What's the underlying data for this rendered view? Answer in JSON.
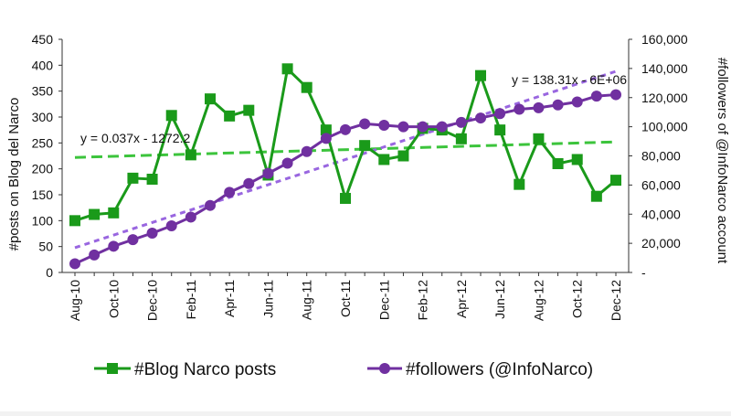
{
  "chart_data": {
    "type": "line",
    "x": [
      "Aug-10",
      "Sep-10",
      "Oct-10",
      "Nov-10",
      "Dec-10",
      "Jan-11",
      "Feb-11",
      "Mar-11",
      "Apr-11",
      "May-11",
      "Jun-11",
      "Jul-11",
      "Aug-11",
      "Sep-11",
      "Oct-11",
      "Nov-11",
      "Dec-11",
      "Jan-12",
      "Feb-12",
      "Mar-12",
      "Apr-12",
      "May-12",
      "Jun-12",
      "Jul-12",
      "Aug-12",
      "Sep-12",
      "Oct-12",
      "Nov-12",
      "Dec-12"
    ],
    "x_tick_labels": [
      "Aug-10",
      "Oct-10",
      "Dec-10",
      "Feb-11",
      "Apr-11",
      "Jun-11",
      "Aug-11",
      "Oct-11",
      "Dec-11",
      "Feb-12",
      "Apr-12",
      "Jun-12",
      "Aug-12",
      "Oct-12",
      "Dec-12"
    ],
    "series": [
      {
        "name": "#Blog Narco posts",
        "axis": "left",
        "color": "#1a9a1a",
        "marker": "square",
        "values": [
          100,
          112,
          115,
          182,
          180,
          303,
          227,
          335,
          302,
          313,
          188,
          393,
          357,
          275,
          143,
          245,
          218,
          225,
          278,
          275,
          258,
          380,
          275,
          170,
          258,
          210,
          218,
          147,
          178
        ]
      },
      {
        "name": "#followers (@InfoNarco)",
        "axis": "right",
        "color": "#7030a0",
        "marker": "circle",
        "values": [
          6000,
          12000,
          18000,
          22500,
          27000,
          32000,
          38000,
          46000,
          55000,
          61000,
          68000,
          75000,
          83000,
          92000,
          98000,
          102000,
          101000,
          100000,
          100000,
          100000,
          103000,
          106000,
          109000,
          112000,
          113000,
          115000,
          117000,
          121000,
          122000
        ]
      }
    ],
    "trendlines": [
      {
        "series": "#Blog Narco posts",
        "color": "#3cc43c",
        "equation": "y = 0.037x - 1272.2",
        "start": 222,
        "end": 252
      },
      {
        "series": "#followers (@InfoNarco)",
        "color": "#9966e0",
        "equation": "y = 138.31x - 6E+06",
        "start": 17000,
        "end": 138000
      }
    ],
    "y_left": {
      "label": "#posts on Blog del Narco",
      "range": [
        0,
        450
      ],
      "ticks": [
        "0",
        "50",
        "100",
        "150",
        "200",
        "250",
        "300",
        "350",
        "400",
        "450"
      ]
    },
    "y_right": {
      "label": "#followers of @InfoNarco account",
      "range": [
        0,
        160000
      ],
      "ticks": [
        "-",
        "20,000",
        "40,000",
        "60,000",
        "80,000",
        "100,000",
        "120,000",
        "140,000",
        "160,000"
      ]
    },
    "grid": false,
    "legend_position": "bottom"
  }
}
